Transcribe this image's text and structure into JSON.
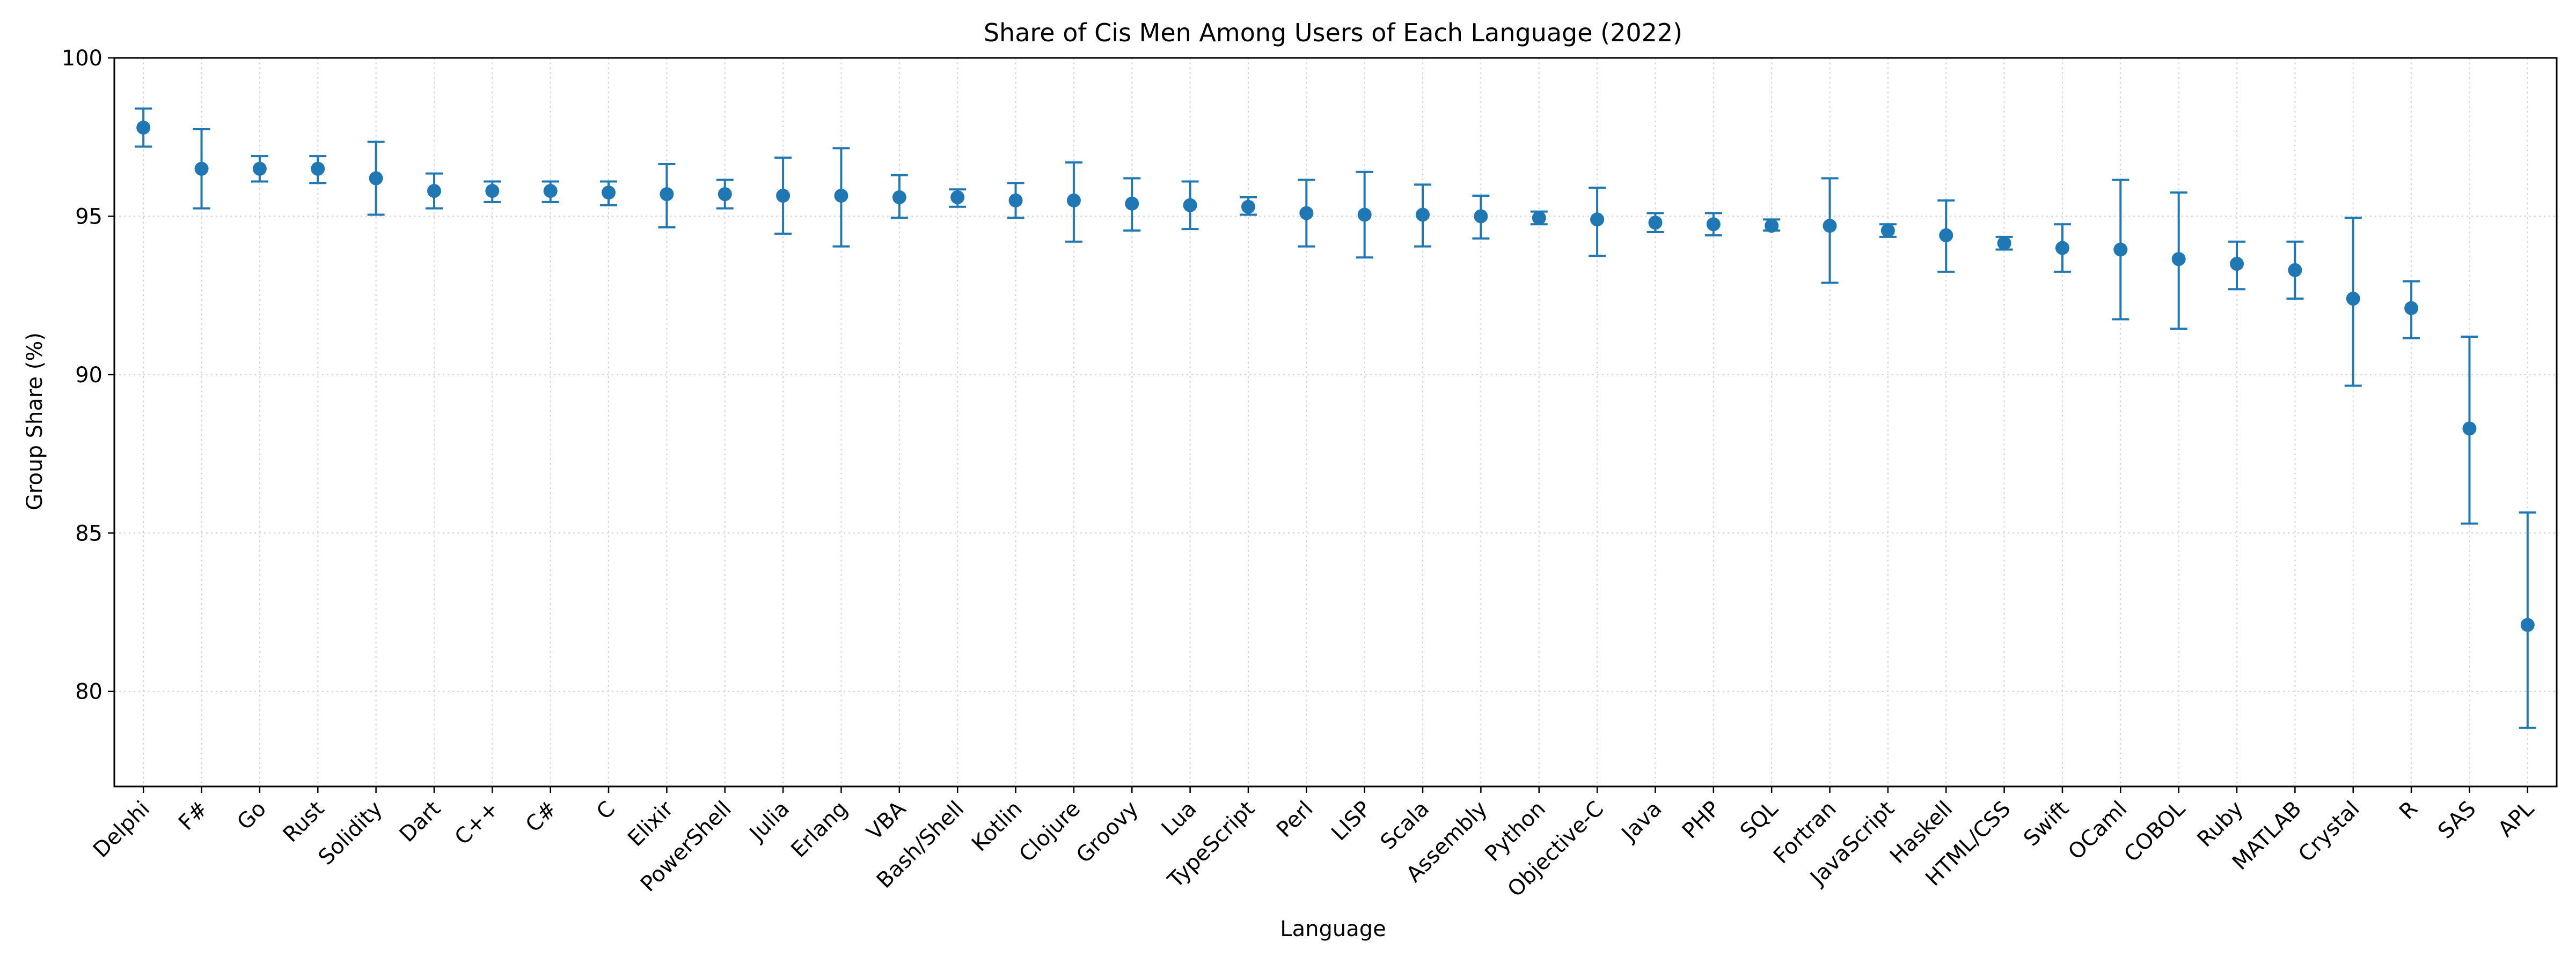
{
  "chart_data": {
    "type": "errorbar",
    "title": "Share of Cis Men Among Users of Each Language (2022)",
    "xlabel": "Language",
    "ylabel": "Group Share (%)",
    "ylim": [
      77,
      100
    ],
    "yticks": [
      80,
      85,
      90,
      95,
      100
    ],
    "grid": true,
    "color": "#1f77b4",
    "categories": [
      "Delphi",
      "F#",
      "Go",
      "Rust",
      "Solidity",
      "Dart",
      "C++",
      "C#",
      "C",
      "Elixir",
      "PowerShell",
      "Julia",
      "Erlang",
      "VBA",
      "Bash/Shell",
      "Kotlin",
      "Clojure",
      "Groovy",
      "Lua",
      "TypeScript",
      "Perl",
      "LISP",
      "Scala",
      "Assembly",
      "Python",
      "Objective-C",
      "Java",
      "PHP",
      "SQL",
      "Fortran",
      "JavaScript",
      "Haskell",
      "HTML/CSS",
      "Swift",
      "OCaml",
      "COBOL",
      "Ruby",
      "MATLAB",
      "Crystal",
      "R",
      "SAS",
      "APL"
    ],
    "values": [
      97.8,
      96.5,
      96.5,
      96.5,
      96.2,
      95.8,
      95.8,
      95.8,
      95.75,
      95.7,
      95.7,
      95.65,
      95.65,
      95.6,
      95.6,
      95.5,
      95.5,
      95.4,
      95.35,
      95.3,
      95.1,
      95.05,
      95.05,
      95.0,
      94.95,
      94.9,
      94.8,
      94.75,
      94.7,
      94.7,
      94.55,
      94.4,
      94.15,
      94.0,
      93.95,
      93.65,
      93.5,
      93.3,
      92.4,
      92.1,
      88.3,
      82.1
    ],
    "lower": [
      97.2,
      95.25,
      96.1,
      96.05,
      95.05,
      95.25,
      95.45,
      95.45,
      95.35,
      94.65,
      95.25,
      94.45,
      94.05,
      94.95,
      95.3,
      94.95,
      94.2,
      94.55,
      94.6,
      95.05,
      94.05,
      93.7,
      94.05,
      94.3,
      94.75,
      93.75,
      94.5,
      94.4,
      94.55,
      92.9,
      94.35,
      93.25,
      93.95,
      93.25,
      91.75,
      91.45,
      92.7,
      92.4,
      89.65,
      91.15,
      85.3,
      78.85
    ],
    "upper": [
      98.4,
      97.75,
      96.9,
      96.9,
      97.35,
      96.35,
      96.1,
      96.1,
      96.1,
      96.65,
      96.15,
      96.85,
      97.15,
      96.3,
      95.85,
      96.05,
      96.7,
      96.2,
      96.1,
      95.6,
      96.15,
      96.4,
      96.0,
      95.65,
      95.15,
      95.9,
      95.1,
      95.1,
      94.9,
      96.2,
      94.75,
      95.5,
      94.35,
      94.75,
      96.15,
      95.75,
      94.2,
      94.2,
      94.95,
      92.95,
      91.2,
      85.65
    ]
  }
}
